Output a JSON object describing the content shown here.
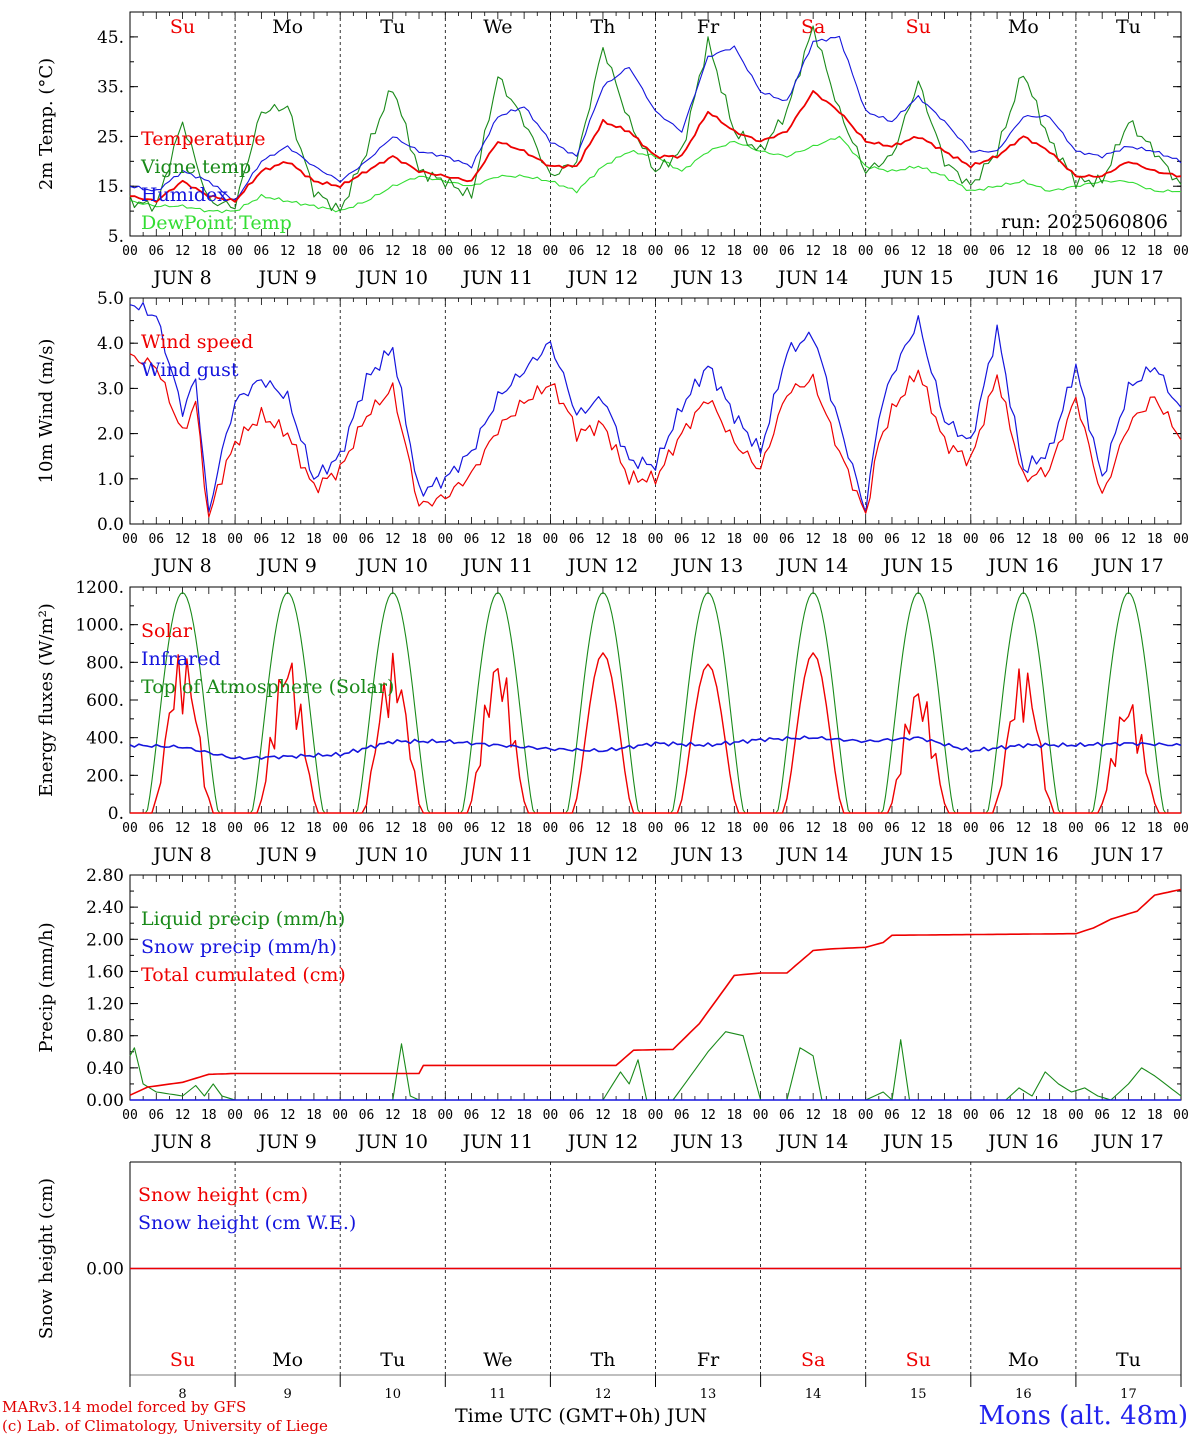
{
  "colors": {
    "red": "#ee0000",
    "green": "#1a8a1a",
    "blue": "#1515dd",
    "lightgreen": "#33dd33",
    "black": "#000000"
  },
  "run_label": "run: 2025060806",
  "footer": {
    "model": "MARv3.14 model forced by GFS",
    "credit": "(c) Lab. of Climatology, University of Liege",
    "xlabel": "Time UTC (GMT+0h) JUN",
    "station": "Mons (alt. 48m)"
  },
  "time_axis": {
    "hour_labels": [
      "00",
      "06",
      "12",
      "18"
    ],
    "date_labels": [
      "JUN  8",
      "JUN  9",
      "JUN 10",
      "JUN 11",
      "JUN 12",
      "JUN 13",
      "JUN 14",
      "JUN 15",
      "JUN 16",
      "JUN 17"
    ],
    "weekdays": [
      "Su",
      "Mo",
      "Tu",
      "We",
      "Th",
      "Fr",
      "Sa",
      "Su",
      "Mo",
      "Tu"
    ],
    "weekday_colors": [
      "red",
      "black",
      "black",
      "black",
      "black",
      "black",
      "red",
      "red",
      "black",
      "black"
    ],
    "day_numbers": [
      "8",
      "9",
      "10",
      "11",
      "12",
      "13",
      "14",
      "15",
      "16",
      "17"
    ]
  },
  "chart_data": [
    {
      "type": "line",
      "id": "temp",
      "ylabel": "2m Temp. (°C)",
      "ylim": [
        5,
        50
      ],
      "yticks": [
        5,
        15,
        25,
        35,
        45
      ],
      "ytick_labels": [
        "5.",
        "15.",
        "25.",
        "35.",
        "45."
      ],
      "x_unit": "hours since JUN 8 00 UTC",
      "series": [
        {
          "name": "Temperature",
          "color": "red",
          "x": [
            0,
            6,
            12,
            18,
            24,
            30,
            36,
            42,
            48,
            54,
            60,
            66,
            72,
            78,
            84,
            90,
            96,
            102,
            108,
            114,
            120,
            126,
            132,
            138,
            144,
            150,
            156,
            162,
            168,
            174,
            180,
            186,
            192,
            198,
            204,
            210,
            216,
            222,
            228,
            234,
            240
          ],
          "values": [
            13,
            12,
            16,
            13,
            12,
            18,
            20,
            16,
            15,
            18,
            21,
            18,
            17,
            16,
            24,
            22,
            19,
            19,
            28,
            26,
            21,
            21,
            30,
            26,
            24,
            26,
            34,
            30,
            24,
            23,
            25,
            22,
            19,
            21,
            25,
            22,
            17,
            17,
            20,
            18,
            17
          ]
        },
        {
          "name": "Vigne temp",
          "color": "green",
          "x": [
            0,
            6,
            12,
            18,
            24,
            30,
            36,
            42,
            48,
            54,
            60,
            66,
            72,
            78,
            84,
            90,
            96,
            102,
            108,
            114,
            120,
            126,
            132,
            138,
            144,
            150,
            156,
            162,
            168,
            174,
            180,
            186,
            192,
            198,
            204,
            210,
            216,
            222,
            228,
            234,
            240
          ],
          "values": [
            12,
            11,
            28,
            12,
            11,
            30,
            31,
            14,
            10,
            22,
            35,
            18,
            16,
            13,
            37,
            28,
            17,
            20,
            43,
            28,
            18,
            22,
            44,
            26,
            22,
            30,
            47,
            30,
            18,
            21,
            36,
            20,
            15,
            22,
            38,
            24,
            16,
            16,
            28,
            22,
            15
          ]
        },
        {
          "name": "Humidex",
          "color": "blue",
          "x": [
            0,
            6,
            12,
            18,
            24,
            30,
            36,
            42,
            48,
            54,
            60,
            66,
            72,
            78,
            84,
            90,
            96,
            102,
            108,
            114,
            120,
            126,
            132,
            138,
            144,
            150,
            156,
            162,
            168,
            174,
            180,
            186,
            192,
            198,
            204,
            210,
            216,
            222,
            228,
            234,
            240
          ],
          "values": [
            15,
            14,
            18,
            16,
            12,
            20,
            23,
            19,
            16,
            20,
            25,
            22,
            21,
            19,
            29,
            31,
            24,
            21,
            35,
            39,
            30,
            26,
            41,
            43,
            34,
            32,
            44,
            45,
            30,
            28,
            33,
            28,
            22,
            22,
            29,
            29,
            22,
            21,
            23,
            22,
            20
          ]
        },
        {
          "name": "DewPoint Temp",
          "color": "lightgreen",
          "x": [
            0,
            6,
            12,
            18,
            24,
            30,
            36,
            42,
            48,
            54,
            60,
            66,
            72,
            78,
            84,
            90,
            96,
            102,
            108,
            114,
            120,
            126,
            132,
            138,
            144,
            150,
            156,
            162,
            168,
            174,
            180,
            186,
            192,
            198,
            204,
            210,
            216,
            222,
            228,
            234,
            240
          ],
          "values": [
            12,
            11,
            11,
            10,
            10,
            13,
            12,
            11,
            10,
            12,
            15,
            17,
            16,
            15,
            17,
            17,
            16,
            14,
            19,
            22,
            21,
            18,
            22,
            24,
            22,
            21,
            23,
            25,
            19,
            18,
            19,
            17,
            14,
            15,
            16,
            14,
            15,
            16,
            16,
            14,
            14
          ]
        }
      ]
    },
    {
      "type": "line",
      "id": "wind",
      "ylabel": "10m Wind (m/s)",
      "ylim": [
        0,
        5
      ],
      "yticks": [
        0,
        1,
        2,
        3,
        4,
        5
      ],
      "ytick_labels": [
        "0.0",
        "1.0",
        "2.0",
        "3.0",
        "4.0",
        "5.0"
      ],
      "x_unit": "hours since JUN 8 00 UTC",
      "series": [
        {
          "name": "Wind speed",
          "color": "red",
          "x": [
            0,
            6,
            12,
            15,
            18,
            20,
            24,
            30,
            36,
            42,
            48,
            54,
            60,
            66,
            72,
            78,
            84,
            90,
            96,
            100,
            102,
            108,
            114,
            120,
            126,
            132,
            138,
            144,
            150,
            156,
            162,
            168,
            171,
            174,
            180,
            186,
            192,
            198,
            204,
            210,
            216,
            222,
            228,
            234,
            240
          ],
          "values": [
            3.7,
            3.5,
            2.0,
            2.7,
            0.1,
            0.8,
            1.8,
            2.4,
            2.0,
            0.8,
            1.2,
            2.4,
            3.0,
            0.4,
            0.6,
            1.1,
            2.1,
            2.7,
            3.1,
            2.5,
            2.0,
            2.2,
            1.0,
            1.0,
            2.0,
            2.8,
            1.8,
            1.2,
            2.9,
            3.2,
            1.6,
            0.2,
            1.8,
            2.5,
            3.4,
            1.8,
            1.4,
            3.3,
            1.0,
            1.2,
            2.8,
            0.6,
            2.2,
            2.8,
            1.9
          ]
        },
        {
          "name": "Wind gust",
          "color": "blue",
          "x": [
            0,
            6,
            12,
            15,
            18,
            20,
            24,
            30,
            36,
            42,
            48,
            54,
            60,
            66,
            72,
            78,
            84,
            90,
            96,
            100,
            102,
            108,
            114,
            120,
            126,
            132,
            138,
            144,
            150,
            156,
            162,
            168,
            171,
            174,
            180,
            186,
            192,
            198,
            204,
            210,
            216,
            222,
            228,
            234,
            240
          ],
          "values": [
            4.9,
            4.6,
            2.5,
            3.2,
            0.2,
            1.2,
            2.7,
            3.2,
            2.8,
            1.0,
            1.5,
            3.2,
            3.9,
            0.7,
            1.0,
            1.6,
            2.8,
            3.4,
            4.0,
            3.0,
            2.4,
            2.8,
            1.4,
            1.3,
            2.6,
            3.5,
            2.4,
            1.6,
            3.8,
            4.2,
            2.2,
            0.3,
            2.4,
            3.3,
            4.5,
            2.3,
            1.8,
            4.3,
            1.2,
            1.6,
            3.5,
            1.0,
            3.0,
            3.5,
            2.5
          ]
        }
      ]
    },
    {
      "type": "line",
      "id": "energy",
      "ylabel": "Energy fluxes (W/m²)",
      "ylim": [
        0,
        1200
      ],
      "yticks": [
        0,
        200,
        400,
        600,
        800,
        1000,
        1200
      ],
      "ytick_labels": [
        "0.",
        "200.",
        "400.",
        "600.",
        "800.",
        "1000.",
        "1200."
      ],
      "x_unit": "hours since JUN 8 00 UTC",
      "series": [
        {
          "name": "Solar",
          "color": "red",
          "peaks": [
            880,
            860,
            850,
            850,
            850,
            790,
            850,
            700,
            800,
            620
          ]
        },
        {
          "name": "Infrared",
          "color": "blue",
          "x": [
            0,
            12,
            24,
            36,
            48,
            60,
            72,
            84,
            96,
            108,
            120,
            132,
            144,
            156,
            168,
            180,
            192,
            204,
            216,
            228,
            240
          ],
          "values": [
            360,
            350,
            290,
            300,
            310,
            380,
            380,
            360,
            340,
            330,
            370,
            360,
            390,
            400,
            380,
            400,
            330,
            360,
            360,
            370,
            360
          ]
        },
        {
          "name": "Top of Atmosphere (Solar)",
          "color": "green",
          "peak": 1170
        }
      ]
    },
    {
      "type": "line",
      "id": "precip",
      "ylabel": "Precip (mm/h)",
      "ylim": [
        0,
        2.8
      ],
      "yticks": [
        0,
        0.4,
        0.8,
        1.2,
        1.6,
        2.0,
        2.4,
        2.8
      ],
      "ytick_labels": [
        "0.00",
        "0.40",
        "0.80",
        "1.20",
        "1.60",
        "2.00",
        "2.40",
        "2.80"
      ],
      "x_unit": "hours since JUN 8 00 UTC",
      "series": [
        {
          "name": "Liquid precip (mm/h)",
          "color": "green",
          "x": [
            0,
            1,
            3,
            6,
            12,
            15,
            17,
            19,
            21,
            24,
            60,
            62,
            64,
            66,
            108,
            112,
            114,
            116,
            118,
            124,
            132,
            136,
            140,
            142,
            144,
            150,
            153,
            156,
            158,
            162,
            168,
            172,
            174,
            176,
            178,
            184,
            200,
            203,
            206,
            209,
            212,
            215,
            218,
            221,
            224,
            228,
            231,
            234,
            240
          ],
          "values": [
            0.55,
            0.65,
            0.2,
            0.1,
            0.05,
            0.18,
            0.05,
            0.2,
            0.05,
            0,
            0,
            0.7,
            0.05,
            0,
            0,
            0.35,
            0.2,
            0.5,
            0,
            0,
            0.6,
            0.85,
            0.8,
            0.4,
            0,
            0,
            0.65,
            0.55,
            0,
            0,
            0,
            0.1,
            0,
            0.75,
            0,
            0,
            0,
            0.15,
            0.05,
            0.35,
            0.2,
            0.1,
            0.15,
            0.05,
            0,
            0.2,
            0.4,
            0.3,
            0.05
          ]
        },
        {
          "name": "Snow precip (mm/h)",
          "color": "blue",
          "x": [
            0,
            240
          ],
          "values": [
            0,
            0
          ]
        },
        {
          "name": "Total cumulated (cm)",
          "color": "red",
          "x": [
            0,
            4,
            12,
            18,
            24,
            66,
            67,
            111,
            115,
            124,
            130,
            138,
            144,
            150,
            156,
            160,
            168,
            172,
            174,
            216,
            220,
            224,
            230,
            234,
            240
          ],
          "values": [
            0.06,
            0.16,
            0.22,
            0.32,
            0.33,
            0.33,
            0.43,
            0.43,
            0.62,
            0.63,
            0.95,
            1.55,
            1.58,
            1.58,
            1.86,
            1.88,
            1.9,
            1.96,
            2.05,
            2.07,
            2.14,
            2.25,
            2.35,
            2.55,
            2.62
          ]
        }
      ]
    },
    {
      "type": "line",
      "id": "snow",
      "ylabel": "Snow height (cm)",
      "ylim": [
        -1,
        1
      ],
      "yticks": [
        0
      ],
      "ytick_labels": [
        "0.00"
      ],
      "x_unit": "hours since JUN 8 00 UTC",
      "series": [
        {
          "name": "Snow height (cm)",
          "color": "red",
          "x": [
            0,
            240
          ],
          "values": [
            0,
            0
          ]
        },
        {
          "name": "Snow height (cm W.E.)",
          "color": "blue",
          "x": [
            0,
            240
          ],
          "values": [
            0,
            0
          ]
        }
      ]
    }
  ]
}
